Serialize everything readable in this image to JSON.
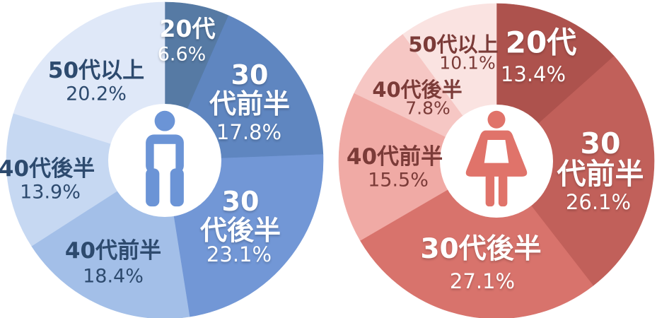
{
  "chart_data": [
    {
      "type": "pie",
      "variant": "donut",
      "icon": "male-person-icon",
      "accent": "#6b94d6",
      "text_on_dark": "#ffffff",
      "text_on_light": "#2d4a6e",
      "categories": [
        "20代",
        "30代前半",
        "30代後半",
        "40代前半",
        "40代後半",
        "50代以上"
      ],
      "values": [
        6.6,
        17.8,
        23.1,
        18.4,
        13.9,
        20.2
      ],
      "percent_labels": [
        "6.6%",
        "17.8%",
        "23.1%",
        "18.4%",
        "13.9%",
        "20.2%"
      ],
      "slice_colors": [
        "#567aa4",
        "#5f86c0",
        "#7297d6",
        "#a3bfe8",
        "#c6d8f2",
        "#dfe8f8"
      ],
      "start_angle_deg": 0,
      "direction": "clockwise",
      "legend": "none",
      "grid": false
    },
    {
      "type": "pie",
      "variant": "donut",
      "icon": "female-person-icon",
      "accent": "#e0736a",
      "text_on_dark": "#ffffff",
      "text_on_light": "#7b3b38",
      "categories": [
        "20代",
        "30代前半",
        "30代後半",
        "40代前半",
        "40代後半",
        "50代以上"
      ],
      "values": [
        13.4,
        26.1,
        27.1,
        15.5,
        7.8,
        10.1
      ],
      "percent_labels": [
        "13.4%",
        "26.1%",
        "27.1%",
        "15.5%",
        "7.8%",
        "10.1%"
      ],
      "slice_colors": [
        "#ad524d",
        "#c1605a",
        "#d8736c",
        "#f0aaa5",
        "#f6c7c4",
        "#fae3e1"
      ],
      "start_angle_deg": 0,
      "direction": "clockwise",
      "legend": "none",
      "grid": false
    }
  ]
}
